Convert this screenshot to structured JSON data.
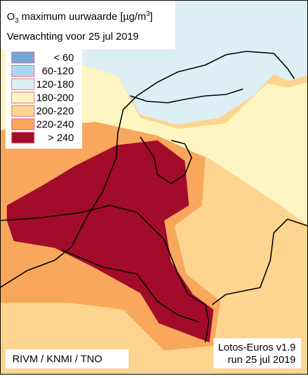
{
  "title": {
    "parts": [
      "O",
      "3",
      " maximum uurwaarde [µg/m",
      "3",
      "]"
    ]
  },
  "subtitle": "Verwachting voor 25 jul 2019",
  "legend": [
    {
      "label": "< 60",
      "color": "#6fa8d6"
    },
    {
      "label": "60-120",
      "color": "#a9d8ee"
    },
    {
      "label": "120-180",
      "color": "#dceff5"
    },
    {
      "label": "180-200",
      "color": "#fff5c2"
    },
    {
      "label": "200-220",
      "color": "#fdd58e"
    },
    {
      "label": "220-240",
      "color": "#f8a75c"
    },
    {
      "label": "> 240",
      "color": "#a20b2a"
    }
  ],
  "credits": "RIVM / KNMI / TNO",
  "model": "Lotos-Euros v1.9",
  "run": "run 25 jul 2019"
}
